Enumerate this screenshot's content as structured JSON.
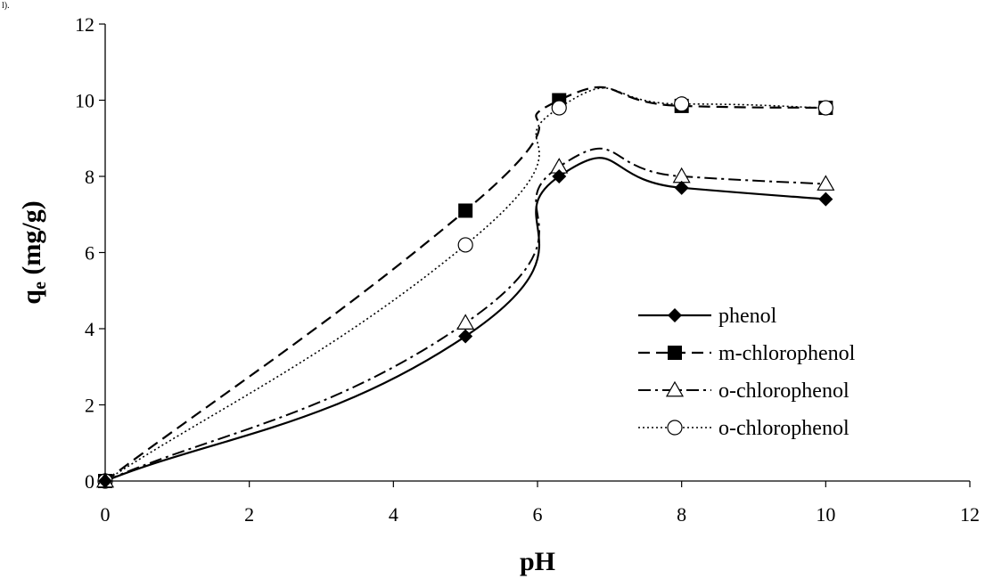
{
  "stray_text": "l).",
  "chart_data": {
    "type": "line",
    "title": "",
    "xlabel": "pH",
    "ylabel_main": "q",
    "ylabel_sub": "e",
    "ylabel_unit": " (mg/g)",
    "xlim": [
      0,
      12
    ],
    "ylim": [
      0,
      12
    ],
    "xticks": [
      0,
      2,
      4,
      6,
      8,
      10,
      12
    ],
    "yticks": [
      0,
      2,
      4,
      6,
      8,
      10,
      12
    ],
    "grid": false,
    "legend_position": "right",
    "series": [
      {
        "name": "phenol",
        "marker": "diamond",
        "line_style": "solid",
        "color": "#000000",
        "x": [
          0,
          5,
          6.3,
          8,
          10
        ],
        "y": [
          0,
          3.8,
          8.0,
          7.7,
          7.4
        ]
      },
      {
        "name": "m-chlorophenol",
        "marker": "square",
        "line_style": "dash",
        "color": "#000000",
        "x": [
          0,
          5,
          6.3,
          8,
          10
        ],
        "y": [
          0,
          7.1,
          10.0,
          9.85,
          9.8
        ]
      },
      {
        "name": "o-chlorophenol",
        "marker": "triangle-open",
        "line_style": "dashdot",
        "color": "#000000",
        "x": [
          0,
          5,
          6.3,
          8,
          10
        ],
        "y": [
          0,
          4.15,
          8.25,
          8.0,
          7.8
        ]
      },
      {
        "name": "o-chlorophenol",
        "marker": "circle-open",
        "line_style": "dot",
        "color": "#000000",
        "x": [
          0,
          5,
          6.3,
          8,
          10
        ],
        "y": [
          0,
          6.2,
          9.8,
          9.9,
          9.8
        ]
      }
    ]
  }
}
